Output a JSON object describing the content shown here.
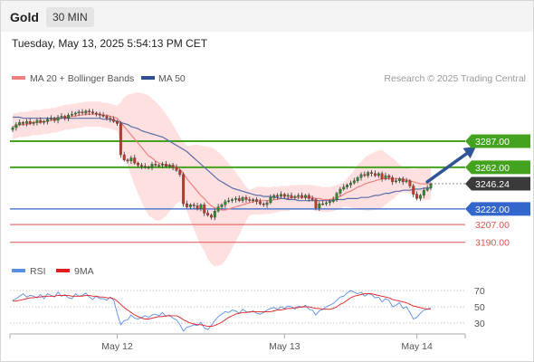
{
  "header": {
    "title": "Gold",
    "timeframe": "30 MIN"
  },
  "timestamp": "Tuesday, May 13, 2025 5:54:13 PM CET",
  "colors": {
    "bands": "#ffd6d6",
    "ma20": "#f08080",
    "ma50": "#5a6fa8",
    "up": "#2e8b2e",
    "down": "#c0392b",
    "resistance": "#44a31e",
    "support_blue": "#3366cc",
    "support_red": "#e05050",
    "arrow": "#2f5597",
    "rsi": "#5b8ee6",
    "rsi_ma": "#e02020"
  },
  "chart_data": [
    {
      "type": "candlestick",
      "title": "Gold",
      "legend": [
        {
          "label": "MA 20 + Bollinger Bands",
          "color": "#f08080"
        },
        {
          "label": "MA 50",
          "color": "#2f4f8f"
        }
      ],
      "credit": "Research © 2025 Trading Central",
      "ylim": [
        3175,
        3340
      ],
      "x_ticks": [
        {
          "label": "May 12",
          "index": 30
        },
        {
          "label": "May 13",
          "index": 78
        },
        {
          "label": "May 14",
          "index": 116
        }
      ],
      "close": [
        3300,
        3303,
        3305,
        3304,
        3306,
        3304,
        3305,
        3307,
        3305,
        3306,
        3308,
        3309,
        3307,
        3310,
        3311,
        3309,
        3312,
        3313,
        3314,
        3315,
        3314,
        3316,
        3315,
        3314,
        3313,
        3312,
        3311,
        3309,
        3308,
        3306,
        3304,
        3274,
        3269,
        3268,
        3271,
        3266,
        3264,
        3263,
        3262,
        3262,
        3265,
        3264,
        3264,
        3265,
        3263,
        3264,
        3262,
        3259,
        3255,
        3227,
        3224,
        3226,
        3225,
        3222,
        3226,
        3218,
        3216,
        3214,
        3220,
        3224,
        3226,
        3229,
        3230,
        3231,
        3232,
        3230,
        3233,
        3231,
        3230,
        3231,
        3229,
        3227,
        3226,
        3228,
        3233,
        3235,
        3234,
        3236,
        3234,
        3235,
        3233,
        3234,
        3235,
        3233,
        3235,
        3232,
        3231,
        3223,
        3227,
        3227,
        3228,
        3229,
        3231,
        3237,
        3241,
        3243,
        3245,
        3247,
        3249,
        3252,
        3255,
        3254,
        3257,
        3256,
        3254,
        3256,
        3251,
        3254,
        3252,
        3248,
        3249,
        3251,
        3248,
        3249,
        3244,
        3236,
        3232,
        3235,
        3240,
        3242,
        3246
      ],
      "candle_start_x": 14,
      "candle_step": 3.85,
      "ma20": [
        3301,
        3302,
        3303,
        3303,
        3303,
        3304,
        3305,
        3305,
        3305,
        3306,
        3306,
        3307,
        3307,
        3308,
        3309,
        3310,
        3310,
        3311,
        3311,
        3312,
        3312,
        3313,
        3313,
        3313,
        3313,
        3313,
        3312,
        3312,
        3311,
        3310,
        3309,
        3305,
        3301,
        3297,
        3293,
        3289,
        3285,
        3281,
        3277,
        3273,
        3271,
        3268,
        3266,
        3265,
        3264,
        3264,
        3263,
        3262,
        3260,
        3256,
        3251,
        3247,
        3243,
        3239,
        3235,
        3232,
        3228,
        3225,
        3223,
        3222,
        3221,
        3221,
        3222,
        3223,
        3224,
        3225,
        3226,
        3227,
        3228,
        3229,
        3230,
        3230,
        3230,
        3230,
        3230,
        3231,
        3231,
        3232,
        3232,
        3232,
        3233,
        3233,
        3233,
        3233,
        3233,
        3233,
        3233,
        3232,
        3232,
        3231,
        3231,
        3231,
        3232,
        3233,
        3234,
        3236,
        3238,
        3239,
        3241,
        3243,
        3244,
        3246,
        3247,
        3248,
        3249,
        3250,
        3251,
        3251,
        3251,
        3251,
        3251,
        3251,
        3250,
        3250,
        3249,
        3248,
        3247,
        3246,
        3246,
        3246,
        3246
      ],
      "ma50": [
        3310,
        3310,
        3310,
        3309,
        3309,
        3309,
        3309,
        3309,
        3309,
        3309,
        3309,
        3309,
        3309,
        3309,
        3309,
        3309,
        3309,
        3309,
        3309,
        3309,
        3309,
        3309,
        3309,
        3309,
        3309,
        3309,
        3308,
        3308,
        3308,
        3307,
        3306,
        3305,
        3304,
        3303,
        3301,
        3300,
        3299,
        3297,
        3296,
        3295,
        3294,
        3293,
        3292,
        3291,
        3289,
        3287,
        3285,
        3283,
        3281,
        3279,
        3277,
        3274,
        3271,
        3268,
        3265,
        3262,
        3259,
        3256,
        3253,
        3250,
        3248,
        3246,
        3244,
        3242,
        3241,
        3240,
        3239,
        3238,
        3237,
        3236,
        3235,
        3235,
        3234,
        3234,
        3234,
        3233,
        3233,
        3232,
        3232,
        3231,
        3231,
        3231,
        3230,
        3230,
        3230,
        3230,
        3230,
        3230,
        3230,
        3230,
        3230,
        3230,
        3230,
        3231,
        3231,
        3231,
        3232,
        3232,
        3232,
        3232,
        3233,
        3233,
        3233,
        3234,
        3235,
        3235,
        3236,
        3237,
        3237,
        3238,
        3239,
        3239,
        3240,
        3240,
        3240,
        3241,
        3241,
        3241,
        3242,
        3242,
        3242
      ],
      "levels": [
        {
          "label": "3287.00",
          "value": 3287,
          "kind": "resistance",
          "line": "green"
        },
        {
          "label": "3262.00",
          "value": 3262,
          "kind": "resistance",
          "line": "green"
        },
        {
          "label": "3246.24",
          "value": 3246.24,
          "kind": "last_price",
          "line": "dotted"
        },
        {
          "label": "3222.00",
          "value": 3222,
          "kind": "support",
          "line": "blue"
        },
        {
          "label": "3207.00",
          "value": 3207,
          "kind": "support",
          "line": "red"
        },
        {
          "label": "3190.00",
          "value": 3190,
          "kind": "support",
          "line": "red"
        }
      ],
      "projection": {
        "from_index": 119,
        "from_value": 3248,
        "to_index": 133,
        "to_value": 3282
      }
    },
    {
      "type": "line",
      "legend": [
        {
          "label": "RSI",
          "color": "#5b8ee6"
        },
        {
          "label": "9MA",
          "color": "#e02020"
        }
      ],
      "ylim": [
        20,
        80
      ],
      "y_ticks": [
        "70",
        "50",
        "30"
      ],
      "guide_levels": [
        70,
        50,
        30
      ],
      "series": [
        {
          "name": "RSI",
          "values": [
            58,
            60,
            63,
            66,
            62,
            64,
            63,
            61,
            65,
            60,
            66,
            64,
            62,
            68,
            63,
            65,
            61,
            60,
            66,
            63,
            64,
            67,
            62,
            59,
            63,
            60,
            60,
            58,
            62,
            58,
            42,
            28,
            33,
            34,
            40,
            36,
            35,
            37,
            39,
            37,
            40,
            41,
            39,
            43,
            38,
            40,
            36,
            34,
            28,
            20,
            25,
            26,
            28,
            27,
            31,
            24,
            22,
            27,
            33,
            38,
            41,
            44,
            43,
            46,
            45,
            42,
            47,
            44,
            43,
            45,
            42,
            41,
            43,
            46,
            48,
            49,
            47,
            50,
            48,
            51,
            50,
            47,
            51,
            49,
            52,
            47,
            46,
            40,
            45,
            47,
            50,
            52,
            54,
            58,
            62,
            63,
            67,
            70,
            68,
            66,
            68,
            63,
            66,
            65,
            61,
            62,
            56,
            60,
            58,
            50,
            52,
            55,
            48,
            50,
            43,
            35,
            37,
            42,
            46,
            47,
            49
          ]
        },
        {
          "name": "9MA",
          "values": [
            57,
            57,
            58,
            59,
            60,
            61,
            61,
            62,
            62,
            63,
            63,
            63,
            63,
            64,
            64,
            64,
            64,
            63,
            63,
            63,
            63,
            64,
            64,
            63,
            63,
            62,
            62,
            61,
            61,
            60,
            57,
            53,
            49,
            46,
            43,
            40,
            38,
            36,
            35,
            35,
            36,
            37,
            38,
            38,
            39,
            39,
            39,
            39,
            37,
            34,
            32,
            30,
            29,
            28,
            28,
            27,
            26,
            26,
            27,
            29,
            31,
            34,
            37,
            39,
            41,
            42,
            43,
            43,
            44,
            44,
            44,
            44,
            44,
            44,
            44,
            45,
            46,
            46,
            47,
            48,
            48,
            49,
            49,
            50,
            50,
            50,
            49,
            48,
            48,
            47,
            47,
            47,
            48,
            50,
            53,
            55,
            58,
            61,
            63,
            64,
            65,
            66,
            66,
            66,
            65,
            64,
            63,
            62,
            61,
            59,
            58,
            57,
            56,
            55,
            53,
            51,
            50,
            49,
            48,
            47,
            47
          ]
        }
      ]
    }
  ]
}
